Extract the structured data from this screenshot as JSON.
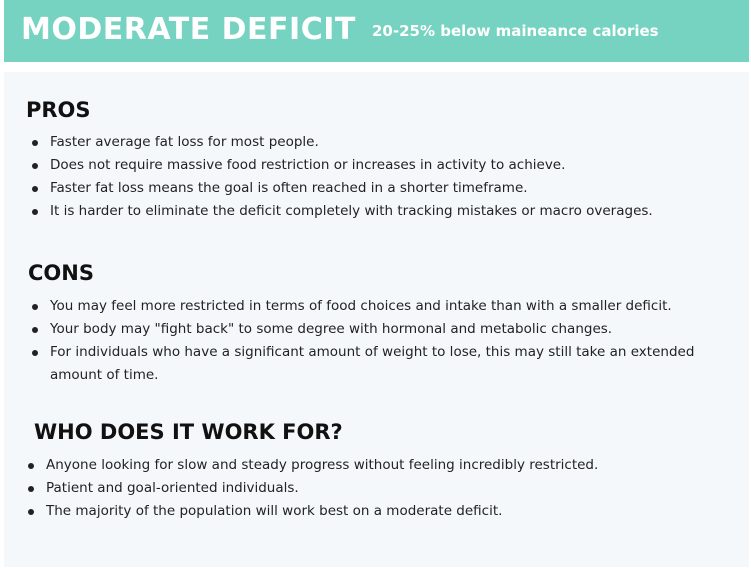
{
  "header": {
    "title": "MODERATE DEFICIT",
    "subtitle": "20-25% below maineance calories",
    "bg_color": "#76d3c1"
  },
  "sections": {
    "pros": {
      "heading": "PROS",
      "items": [
        "Faster average fat loss for most people.",
        "Does not require massive food restriction or increases in activity to achieve.",
        "Faster fat loss means the goal is often reached in a shorter timeframe.",
        "It is harder to eliminate the deficit completely with tracking mistakes or macro overages."
      ]
    },
    "cons": {
      "heading": "CONS",
      "items": [
        "You may feel more restricted in terms of food choices and intake than with a smaller deficit.",
        "Your body may \"fight back\" to some degree with hormonal and metabolic changes.",
        "For individuals who have a significant amount of weight to lose, this may still take an extended amount of time."
      ]
    },
    "who": {
      "heading": "WHO DOES IT WORK FOR?",
      "items": [
        "Anyone looking for slow and steady progress without feeling incredibly restricted.",
        "Patient and goal-oriented individuals.",
        "The majority of the population will work best on a moderate deficit."
      ]
    }
  }
}
